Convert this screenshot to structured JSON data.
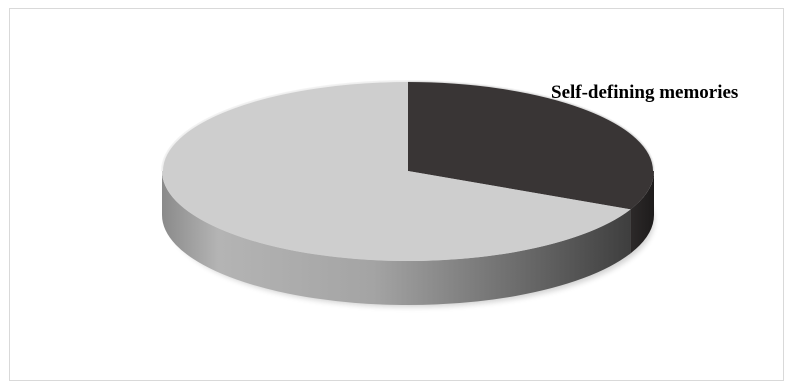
{
  "chart_data": {
    "type": "pie",
    "style": "3d",
    "title": "",
    "start_angle_deg": 90,
    "direction": "clockwise",
    "slices": [
      {
        "label": "Self-defining memories",
        "value": 32,
        "color": "#393535",
        "show_label": true
      },
      {
        "label": "",
        "value": 68,
        "color": "#cecece",
        "show_label": false
      }
    ],
    "legend": "none"
  }
}
